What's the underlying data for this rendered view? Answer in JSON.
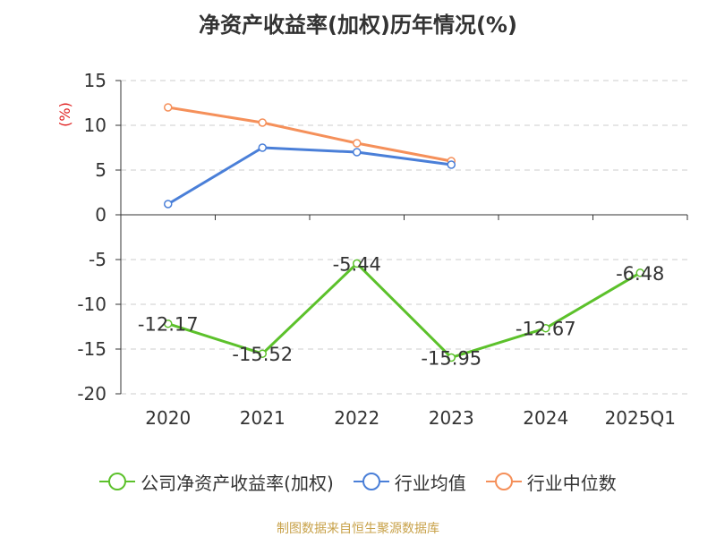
{
  "chart_data": {
    "type": "line",
    "title": "净资产收益率(加权)历年情况(%)",
    "ylabel": "(%)",
    "categories": [
      "2020",
      "2021",
      "2022",
      "2023",
      "2024",
      "2025Q1"
    ],
    "ylim": [
      -20,
      15
    ],
    "yticks": [
      15,
      10,
      5,
      0,
      -5,
      -10,
      -15,
      -20
    ],
    "grid": true,
    "legend_position": "bottom",
    "series": [
      {
        "name": "公司净资产收益率(加权)",
        "color": "#5cc12b",
        "values": [
          -12.17,
          -15.52,
          -5.44,
          -15.95,
          -12.67,
          -6.48
        ],
        "labels": [
          "-12.17",
          "-15.52",
          "-5.44",
          "-15.95",
          "-12.67",
          "-6.48"
        ]
      },
      {
        "name": "行业均值",
        "color": "#4a7fd8",
        "values": [
          1.2,
          7.5,
          7.0,
          5.6,
          null,
          null
        ]
      },
      {
        "name": "行业中位数",
        "color": "#f5905a",
        "values": [
          12.0,
          10.3,
          8.0,
          6.0,
          null,
          null
        ]
      }
    ]
  },
  "source": "制图数据来自恒生聚源数据库",
  "colors": {
    "ylabel": "#e02020",
    "grid": "#cccccc",
    "axis": "#333333",
    "text": "#333333"
  }
}
